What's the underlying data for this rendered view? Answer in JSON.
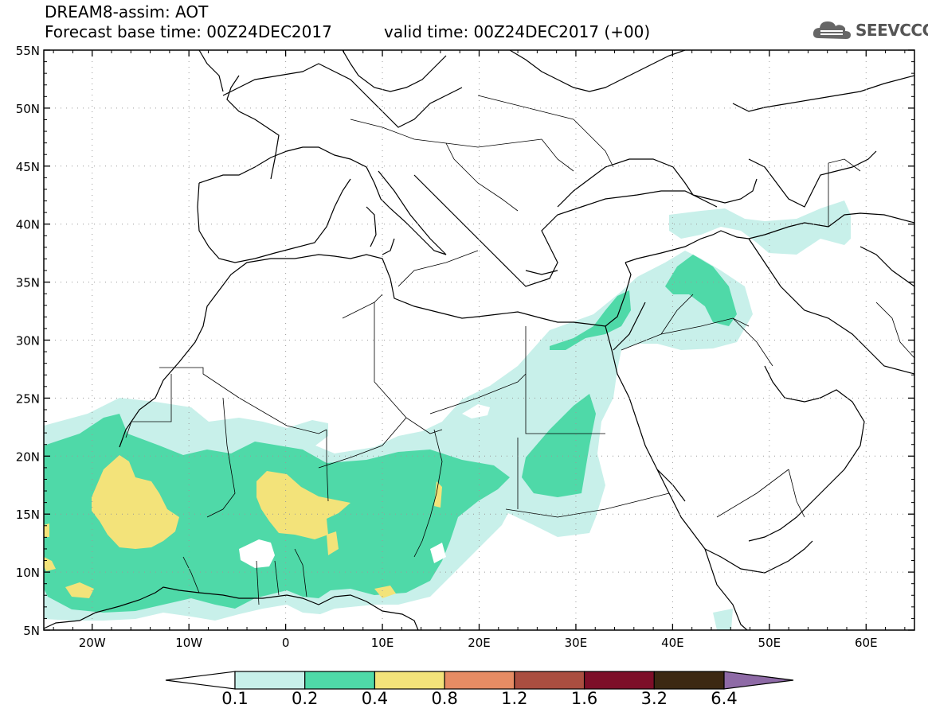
{
  "title": {
    "line1": "DREAM8-assim: AOT",
    "line2": "Forecast base time: 00Z24DEC2017",
    "valid": "valid time: 00Z24DEC2017 (+00)"
  },
  "logo": {
    "text": "SEEVCCC",
    "icon": "cloud-icon"
  },
  "map": {
    "lat_labels": [
      "55N",
      "50N",
      "45N",
      "40N",
      "35N",
      "30N",
      "25N",
      "20N",
      "15N",
      "10N",
      "5N"
    ],
    "lon_labels": [
      "20W",
      "10W",
      "0",
      "10E",
      "20E",
      "30E",
      "40E",
      "50E",
      "60E"
    ],
    "lon_range": [
      -25,
      65
    ],
    "lat_range": [
      5,
      55
    ],
    "field": "AOT"
  },
  "colorbar": {
    "labels": [
      "0.1",
      "0.2",
      "0.4",
      "0.8",
      "1.2",
      "1.6",
      "3.2",
      "6.4"
    ],
    "colors": [
      "#ffffff",
      "#c8f0ea",
      "#4fd9a8",
      "#f3e37a",
      "#e68c64",
      "#aa4e40",
      "#7d0e28",
      "#3c2812",
      "#8e6aa6"
    ]
  }
}
